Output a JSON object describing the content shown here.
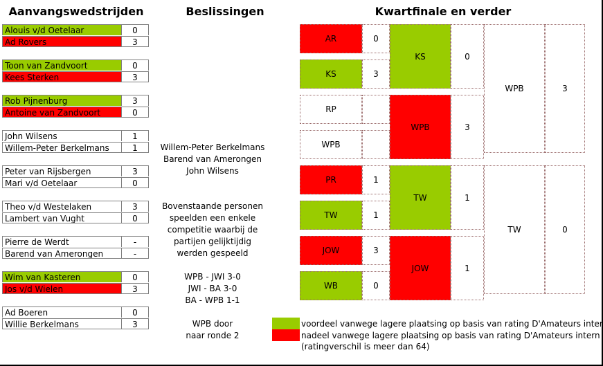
{
  "headers": {
    "left": "Aanvangswedstrijden",
    "middle": "Beslissingen",
    "right": "Kwartfinale en verder"
  },
  "matches": [
    {
      "p1": "Alouis v/d Oetelaar",
      "s1": "0",
      "p2": "Ad Rovers",
      "s2": "3",
      "c1": "green",
      "c2": "red"
    },
    {
      "p1": "Toon van Zandvoort",
      "s1": "0",
      "p2": "Kees Sterken",
      "s2": "3",
      "c1": "green",
      "c2": "red"
    },
    {
      "p1": "Rob Pijnenburg",
      "s1": "3",
      "p2": "Antoine van Zandvoort",
      "s2": "0",
      "c1": "green",
      "c2": "red"
    },
    {
      "p1": "John Wilsens",
      "s1": "1",
      "p2": "Willem-Peter Berkelmans",
      "s2": "1",
      "c1": "",
      "c2": ""
    },
    {
      "p1": "Peter van Rijsbergen",
      "s1": "3",
      "p2": "Mari v/d Oetelaar",
      "s2": "0",
      "c1": "",
      "c2": ""
    },
    {
      "p1": "Theo v/d Westelaken",
      "s1": "3",
      "p2": "Lambert van Vught",
      "s2": "0",
      "c1": "",
      "c2": ""
    },
    {
      "p1": "Pierre de Werdt",
      "s1": "-",
      "p2": "Barend van Amerongen",
      "s2": "-",
      "c1": "",
      "c2": ""
    },
    {
      "p1": "Wim van Kasteren",
      "s1": "0",
      "p2": "Jos v/d Wielen",
      "s2": "3",
      "c1": "green",
      "c2": "red"
    },
    {
      "p1": "Ad Boeren",
      "s1": "0",
      "p2": "Willie Berkelmans",
      "s2": "3",
      "c1": "",
      "c2": ""
    }
  ],
  "decisions": {
    "group": [
      "Willem-Peter Berkelmans",
      "Barend van Amerongen",
      "John Wilsens"
    ],
    "note": [
      "Bovenstaande personen",
      "speelden een enkele",
      "competitie waarbij de",
      "partijen gelijktijdig",
      "werden gespeeld"
    ],
    "results": [
      "WPB - JWI 3-0",
      "JWI - BA 3-0",
      "BA - WPB 1-1"
    ],
    "advance": [
      "WPB door",
      "naar ronde 2"
    ]
  },
  "bracket": {
    "r1": [
      {
        "label": "AR",
        "score": "0",
        "color": "red"
      },
      {
        "label": "KS",
        "score": "3",
        "color": "green"
      },
      {
        "label": "RP",
        "score": "",
        "color": ""
      },
      {
        "label": "WPB",
        "score": "",
        "color": ""
      },
      {
        "label": "PR",
        "score": "1",
        "color": "red"
      },
      {
        "label": "TW",
        "score": "1",
        "color": "green"
      },
      {
        "label": "JOW",
        "score": "3",
        "color": "red"
      },
      {
        "label": "WB",
        "score": "0",
        "color": "green"
      }
    ],
    "r2": [
      {
        "label": "KS",
        "score": "0",
        "color": "green"
      },
      {
        "label": "WPB",
        "score": "3",
        "color": "red"
      },
      {
        "label": "TW",
        "score": "1",
        "color": "green"
      },
      {
        "label": "JOW",
        "score": "1",
        "color": "red"
      }
    ],
    "r3": [
      {
        "label": "WPB",
        "score": "3",
        "color": ""
      },
      {
        "label": "TW",
        "score": "0",
        "color": ""
      }
    ]
  },
  "legend": {
    "green_text": "voordeel vanwege lagere plaatsing op basis van rating D'Amateurs intern",
    "red_text": "nadeel vanwege lagere plaatsing op basis van rating D'Amateurs intern",
    "note": "(ratingverschil is meer dan 64)"
  },
  "colors": {
    "green": "#99cc00",
    "red": "#ff0000"
  }
}
